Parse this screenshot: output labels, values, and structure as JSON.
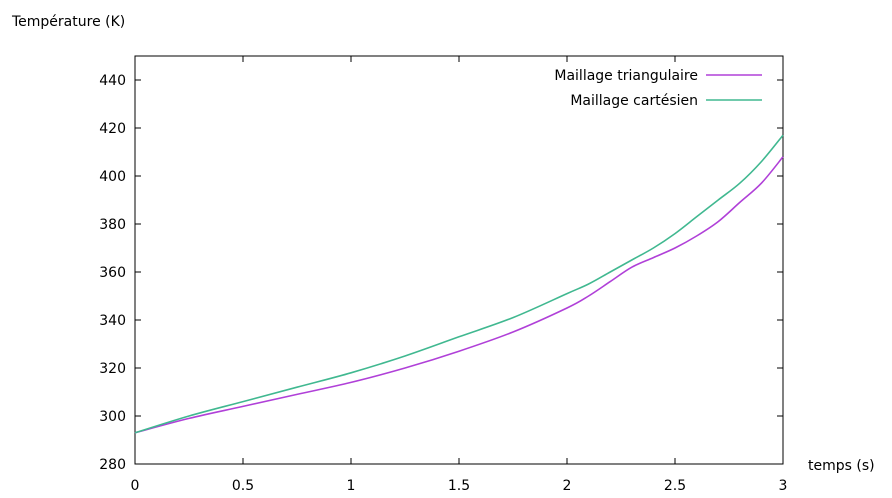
{
  "chart_data": {
    "type": "line",
    "title": "",
    "xlabel": "temps (s)",
    "ylabel": "Température (K)",
    "xlim": [
      0,
      3
    ],
    "ylim": [
      280,
      450
    ],
    "x_ticks": [
      0,
      0.5,
      1,
      1.5,
      2,
      2.5,
      3
    ],
    "x_tick_labels": [
      "0",
      "0.5",
      "1",
      "1.5",
      "2",
      "2.5",
      "3"
    ],
    "y_ticks": [
      280,
      300,
      320,
      340,
      360,
      380,
      400,
      420,
      440
    ],
    "y_tick_labels": [
      "280",
      "300",
      "320",
      "340",
      "360",
      "380",
      "400",
      "420",
      "440"
    ],
    "grid": false,
    "legend_position": "top-right",
    "series": [
      {
        "name": "Maillage triangulaire",
        "color": "#b040d8",
        "x": [
          0,
          0.25,
          0.5,
          0.75,
          1,
          1.25,
          1.5,
          1.75,
          2,
          2.1,
          2.2,
          2.3,
          2.4,
          2.5,
          2.6,
          2.7,
          2.8,
          2.9,
          3
        ],
        "y": [
          293,
          299,
          304,
          309,
          314,
          320,
          327,
          335,
          345,
          350,
          356,
          362,
          366,
          370,
          375,
          381,
          389,
          397,
          408
        ]
      },
      {
        "name": "Maillage cartésien",
        "color": "#40b890",
        "x": [
          0,
          0.25,
          0.5,
          0.75,
          1,
          1.25,
          1.5,
          1.75,
          2,
          2.1,
          2.2,
          2.3,
          2.4,
          2.5,
          2.6,
          2.7,
          2.8,
          2.9,
          3
        ],
        "y": [
          293,
          300,
          306,
          312,
          318,
          325,
          333,
          341,
          351,
          355,
          360,
          365,
          370,
          376,
          383,
          390,
          397,
          406,
          417
        ]
      }
    ]
  }
}
